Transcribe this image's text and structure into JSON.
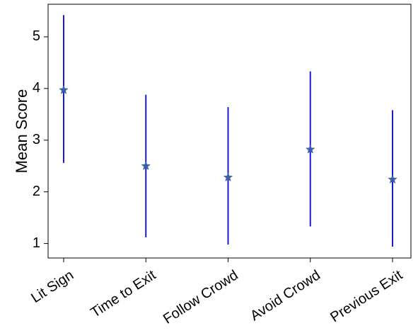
{
  "chart_data": {
    "type": "scatter",
    "title": "",
    "xlabel": "",
    "ylabel": "Mean Score",
    "categories": [
      "Lit Sign",
      "Time to Exit",
      "Follow Crowd",
      "Avoid Crowd",
      "Previous Exit"
    ],
    "series": [
      {
        "values": [
          3.97,
          2.5,
          2.28,
          2.82,
          2.24
        ],
        "error_low": [
          2.56,
          1.12,
          0.98,
          1.33,
          0.94
        ],
        "error_high": [
          5.42,
          3.88,
          3.64,
          4.33,
          3.58
        ],
        "marker": "star",
        "marker_color": "#3b5fa8",
        "errorbar_color": "#1a1adb"
      }
    ],
    "yticks": [
      1,
      2,
      3,
      4,
      5
    ],
    "ylim": [
      0.72,
      5.63
    ],
    "grid": false,
    "legend": "none"
  }
}
